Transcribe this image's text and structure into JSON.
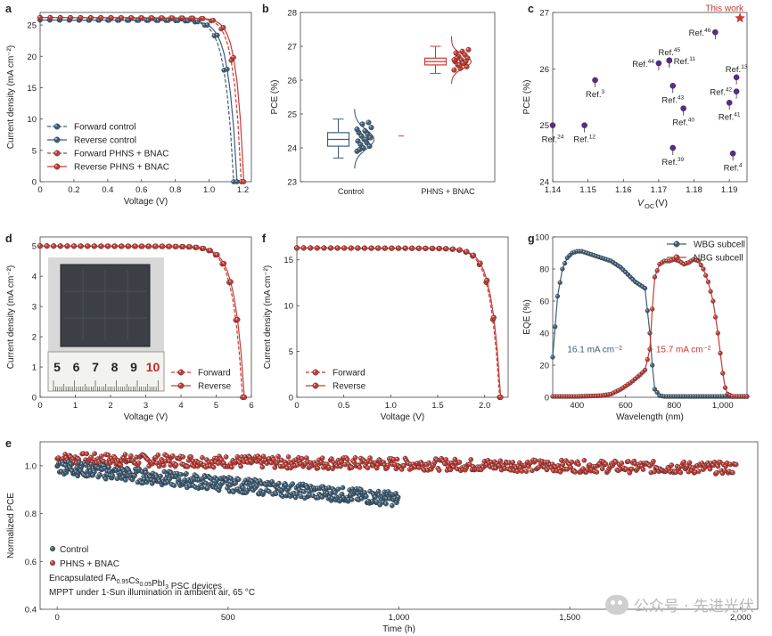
{
  "colors": {
    "control": "#3d5f7a",
    "bnac": "#c73a33",
    "star": "#c73a33",
    "marker": "#5a2a8c"
  },
  "watermark": {
    "text": "公众号 · 先进光伏"
  },
  "chart_data": [
    {
      "panel": "a",
      "type": "line",
      "xlabel": "Voltage (V)",
      "ylabel": "Current density (mA cm⁻²)",
      "xlim": [
        0,
        1.25
      ],
      "ylim": [
        0,
        27
      ],
      "xticks": [
        0,
        0.2,
        0.4,
        0.6,
        0.8,
        1.0,
        1.2
      ],
      "xticklabels": [
        "0",
        "0.2",
        "0.4",
        "0.6",
        "0.8",
        "1.0",
        "1.2"
      ],
      "yticks": [
        0,
        5,
        10,
        15,
        20,
        25
      ],
      "legend": "bottom-left",
      "series": [
        {
          "name": "Forward control",
          "color": "#3d5f7a",
          "dashed": true,
          "jsc": 25.8,
          "voc": 1.145,
          "vmp": 0.99
        },
        {
          "name": "Reverse control",
          "color": "#3d5f7a",
          "dashed": false,
          "jsc": 25.8,
          "voc": 1.165,
          "vmp": 1.01
        },
        {
          "name": "Forward PHNS + BNAC",
          "color": "#c73a33",
          "dashed": true,
          "jsc": 26.2,
          "voc": 1.19,
          "vmp": 1.05
        },
        {
          "name": "Reverse PHNS + BNAC",
          "color": "#c73a33",
          "dashed": false,
          "jsc": 26.2,
          "voc": 1.205,
          "vmp": 1.07
        }
      ]
    },
    {
      "panel": "b",
      "type": "box",
      "ylabel": "PCE (%)",
      "ylim": [
        23,
        28
      ],
      "yticks": [
        23,
        24,
        25,
        26,
        27,
        28
      ],
      "categories": [
        "Control",
        "PHNS + BNAC"
      ],
      "boxes": [
        {
          "name": "Control",
          "color": "#3d5f7a",
          "min": 23.7,
          "q1": 24.05,
          "median": 24.25,
          "q3": 24.45,
          "max": 24.85,
          "points": [
            23.9,
            24.0,
            24.05,
            24.1,
            24.15,
            24.2,
            24.25,
            24.3,
            24.35,
            24.4,
            24.45,
            24.5,
            24.6,
            24.7,
            24.75,
            23.95,
            24.25,
            24.55
          ]
        },
        {
          "name": "PHNS + BNAC",
          "color": "#c73a33",
          "min": 26.2,
          "q1": 26.45,
          "median": 26.55,
          "q3": 26.65,
          "max": 27.0,
          "points": [
            26.3,
            26.35,
            26.4,
            26.45,
            26.5,
            26.55,
            26.6,
            26.65,
            26.7,
            26.75,
            26.8,
            26.85,
            26.9,
            26.45,
            26.55,
            26.65,
            26.5,
            26.6
          ]
        }
      ]
    },
    {
      "panel": "c",
      "type": "scatter",
      "xlabel": "V",
      "xlabel_sub": "OC",
      "xlabel_unit": " (V)",
      "ylabel": "PCE (%)",
      "xlim": [
        1.14,
        1.195
      ],
      "ylim": [
        24,
        27
      ],
      "xticks": [
        1.14,
        1.15,
        1.16,
        1.17,
        1.18,
        1.19
      ],
      "xticklabels": [
        "1.14",
        "1.15",
        "1.16",
        "1.17",
        "1.18",
        "1.19"
      ],
      "yticks": [
        24,
        25,
        26,
        27
      ],
      "highlight": {
        "label": "This work",
        "x": 1.193,
        "y": 26.9
      },
      "points": [
        {
          "ref": "46",
          "x": 1.186,
          "y": 26.65,
          "pos": "left"
        },
        {
          "ref": "45",
          "x": 1.173,
          "y": 26.15,
          "pos": "above"
        },
        {
          "ref": "11",
          "x": 1.173,
          "y": 26.15,
          "pos": "right"
        },
        {
          "ref": "44",
          "x": 1.17,
          "y": 26.1,
          "pos": "left"
        },
        {
          "ref": "13",
          "x": 1.192,
          "y": 25.85,
          "pos": "above"
        },
        {
          "ref": "3",
          "x": 1.152,
          "y": 25.8,
          "pos": "below"
        },
        {
          "ref": "42",
          "x": 1.192,
          "y": 25.6,
          "pos": "left"
        },
        {
          "ref": "43",
          "x": 1.174,
          "y": 25.7,
          "pos": "below"
        },
        {
          "ref": "41",
          "x": 1.19,
          "y": 25.4,
          "pos": "below"
        },
        {
          "ref": "40",
          "x": 1.177,
          "y": 25.3,
          "pos": "below"
        },
        {
          "ref": "24",
          "x": 1.14,
          "y": 25.0,
          "pos": "below"
        },
        {
          "ref": "12",
          "x": 1.149,
          "y": 25.0,
          "pos": "below"
        },
        {
          "ref": "39",
          "x": 1.174,
          "y": 24.6,
          "pos": "below"
        },
        {
          "ref": "4",
          "x": 1.191,
          "y": 24.5,
          "pos": "below"
        }
      ]
    },
    {
      "panel": "d",
      "type": "line",
      "xlabel": "Voltage (V)",
      "ylabel": "Current density (mA cm⁻²)",
      "xlim": [
        0,
        6
      ],
      "ylim": [
        0,
        5.3
      ],
      "xticks": [
        0,
        1,
        2,
        3,
        4,
        5,
        6
      ],
      "yticks": [
        0,
        1,
        2,
        3,
        4,
        5
      ],
      "legend": "bottom-right",
      "inset_ruler": [
        "5",
        "6",
        "7",
        "8",
        "9",
        "10"
      ],
      "series": [
        {
          "name": "Forward",
          "color": "#c73a33",
          "dashed": true,
          "jsc": 5.0,
          "voc": 5.75,
          "vmp": 4.9
        },
        {
          "name": "Reverse",
          "color": "#c73a33",
          "dashed": false,
          "jsc": 5.0,
          "voc": 5.8,
          "vmp": 4.95
        }
      ]
    },
    {
      "panel": "f",
      "type": "line",
      "xlabel": "Voltage (V)",
      "ylabel": "Current density (mA cm⁻²)",
      "xlim": [
        0,
        2.25
      ],
      "ylim": [
        0,
        17.5
      ],
      "xticks": [
        0,
        0.5,
        1.0,
        1.5,
        2.0
      ],
      "xticklabels": [
        "0",
        "0.5",
        "1.0",
        "1.5",
        "2.0"
      ],
      "yticks": [
        0,
        5,
        10,
        15
      ],
      "legend": "bottom-left",
      "series": [
        {
          "name": "Forward",
          "color": "#c73a33",
          "dashed": true,
          "jsc": 16.3,
          "voc": 2.16,
          "vmp": 1.85
        },
        {
          "name": "Reverse",
          "color": "#c73a33",
          "dashed": false,
          "jsc": 16.3,
          "voc": 2.17,
          "vmp": 1.87
        }
      ]
    },
    {
      "panel": "g",
      "type": "line",
      "xlabel": "Wavelength (nm)",
      "ylabel": "EQE (%)",
      "xlim": [
        300,
        1100
      ],
      "ylim": [
        0,
        100
      ],
      "xticks": [
        400,
        600,
        800,
        1000
      ],
      "xticklabels": [
        "400",
        "600",
        "800",
        "1,000"
      ],
      "yticks": [
        0,
        20,
        40,
        60,
        80,
        100
      ],
      "legend": "top-right",
      "annotations": [
        {
          "text": "16.1 mA cm⁻²",
          "color": "#3d5f7a"
        },
        {
          "text": "15.7 mA cm⁻²",
          "color": "#c73a33"
        }
      ],
      "series": [
        {
          "name": "WBG subcell",
          "color": "#3d5f7a",
          "x": [
            300,
            320,
            340,
            360,
            380,
            400,
            420,
            440,
            460,
            480,
            500,
            520,
            540,
            560,
            580,
            600,
            620,
            640,
            660,
            680,
            700,
            710,
            720,
            740,
            760,
            800,
            900,
            1000,
            1100
          ],
          "y": [
            25,
            63,
            80,
            87,
            90,
            91,
            91,
            90,
            89,
            88,
            87,
            86,
            85,
            83,
            81,
            78,
            75,
            72,
            70,
            68,
            40,
            20,
            5,
            1,
            0.5,
            0.5,
            0.5,
            0.5,
            0.5
          ]
        },
        {
          "name": "NBG subcell",
          "color": "#c73a33",
          "x": [
            300,
            400,
            500,
            540,
            580,
            620,
            660,
            680,
            700,
            710,
            720,
            740,
            760,
            780,
            800,
            820,
            840,
            860,
            880,
            900,
            920,
            940,
            960,
            980,
            1000,
            1010,
            1020,
            1040,
            1100
          ],
          "y": [
            0.5,
            0.5,
            1,
            2,
            5,
            9,
            14,
            17,
            30,
            55,
            75,
            83,
            85,
            85,
            86,
            85,
            83,
            84,
            86,
            85,
            80,
            72,
            60,
            40,
            15,
            6,
            2,
            0.5,
            0.5
          ]
        }
      ]
    },
    {
      "panel": "e",
      "type": "scatter",
      "xlabel": "Time (h)",
      "ylabel": "Normalized PCE",
      "xlim": [
        -50,
        2050
      ],
      "ylim": [
        0.4,
        1.1
      ],
      "xticks": [
        0,
        500,
        1000,
        1500,
        2000
      ],
      "xticklabels": [
        "0",
        "500",
        "1,000",
        "1,500",
        "2,000"
      ],
      "yticks": [
        0.4,
        0.6,
        0.8,
        1.0
      ],
      "yticklabels": [
        "0.4",
        "0.6",
        "0.8",
        "1.0"
      ],
      "legend": "bottom-left",
      "notes": [
        "Encapsulated FA0.95Cs0.05PbI3 PSC devices",
        "MPPT under 1-Sun illumination in ambient air, 65 °C"
      ],
      "series": [
        {
          "name": "Control",
          "color": "#3d5f7a",
          "start": 1.0,
          "end": 0.86,
          "tmax": 1000,
          "n": 450,
          "spread": 0.03
        },
        {
          "name": "PHNS + BNAC",
          "color": "#c73a33",
          "start": 1.03,
          "end": 0.99,
          "tmax": 1990,
          "n": 600,
          "spread": 0.025
        }
      ]
    }
  ],
  "labels": {
    "a": "a",
    "b": "b",
    "c": "c",
    "d": "d",
    "e": "e",
    "f": "f",
    "g": "g"
  }
}
